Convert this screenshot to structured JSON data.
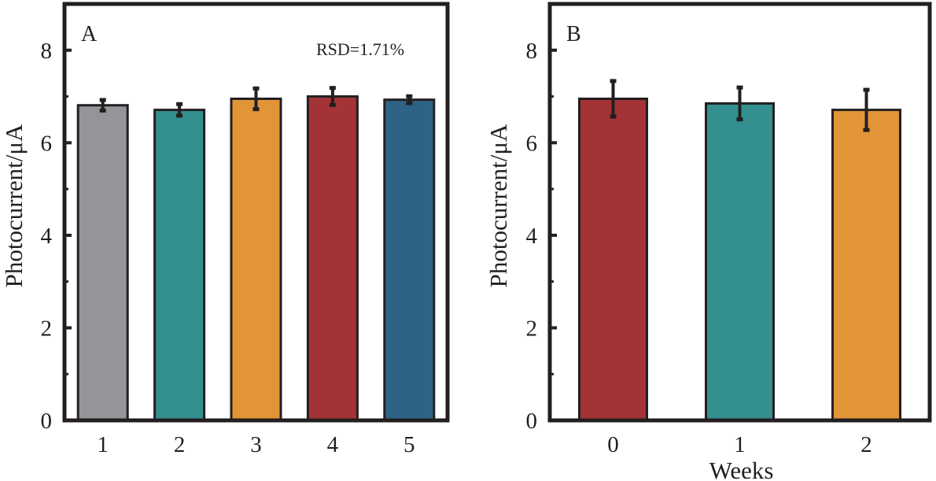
{
  "chart_data": [
    {
      "type": "bar",
      "panel_label": "A",
      "title": "",
      "xlabel": "",
      "ylabel": "Photocurrent/μA",
      "categories": [
        "1",
        "2",
        "3",
        "4",
        "5"
      ],
      "values": [
        6.81,
        6.71,
        6.95,
        7.0,
        6.93
      ],
      "errors": [
        0.14,
        0.15,
        0.25,
        0.21,
        0.1
      ],
      "colors": [
        "#939598",
        "#348f8f",
        "#e29537",
        "#a43335",
        "#2e6386"
      ],
      "ylim": [
        0,
        9
      ],
      "yticks": [
        "0",
        "2",
        "4",
        "6",
        "8"
      ],
      "ytick_values": [
        0,
        2,
        4,
        6,
        8
      ],
      "minor_ytick_values": [
        1,
        3,
        5,
        7
      ],
      "annotation": "RSD=1.71%",
      "grid": false,
      "legend": "none"
    },
    {
      "type": "bar",
      "panel_label": "B",
      "title": "",
      "xlabel": "Weeks",
      "ylabel": "Photocurrent/μA",
      "categories": [
        "0",
        "1",
        "2"
      ],
      "values": [
        6.95,
        6.85,
        6.71
      ],
      "errors": [
        0.41,
        0.37,
        0.46
      ],
      "colors": [
        "#a43335",
        "#348f8f",
        "#e29537"
      ],
      "ylim": [
        0,
        9
      ],
      "yticks": [
        "0",
        "2",
        "4",
        "6",
        "8"
      ],
      "ytick_values": [
        0,
        2,
        4,
        6,
        8
      ],
      "minor_ytick_values": [
        1,
        3,
        5,
        7
      ],
      "annotation": "",
      "grid": false,
      "legend": "none"
    }
  ]
}
